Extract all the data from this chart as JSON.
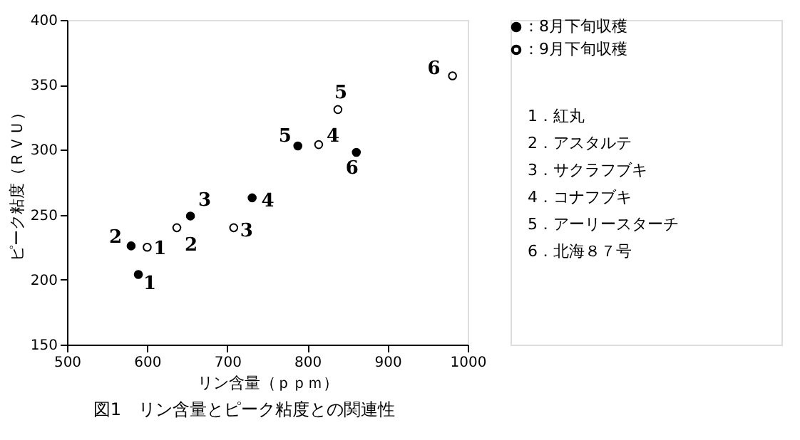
{
  "chart_data": {
    "type": "scatter",
    "title": "図1　リン含量とピーク粘度との関連性",
    "xlabel": "リン含量（ｐｐｍ）",
    "ylabel": "ピーク粘度（ＲＶＵ）",
    "xlim": [
      500,
      1000
    ],
    "xticks": [
      500,
      600,
      700,
      800,
      900,
      1000
    ],
    "ylim": [
      150,
      400
    ],
    "yticks": [
      150,
      200,
      250,
      300,
      350,
      400
    ],
    "grid": false,
    "legend": "right",
    "marker": "circle",
    "series": [
      {
        "name": "：8月下旬収穫",
        "color": "#000000",
        "x": [
          589,
          580,
          654,
          731,
          788,
          861
        ],
        "values": [
          204,
          226,
          249,
          263,
          303,
          298
        ]
      },
      {
        "name": "：9月下旬収穫",
        "color": "#ffffff",
        "x": [
          600,
          637,
          708,
          814,
          838,
          981
        ],
        "values": [
          225,
          240,
          240,
          304,
          331,
          357
        ]
      }
    ],
    "annotations": [
      {
        "text": "1",
        "x": 589,
        "y": 204
      },
      {
        "text": "2",
        "x": 580,
        "y": 226
      },
      {
        "text": "3",
        "x": 654,
        "y": 249
      },
      {
        "text": "4",
        "x": 731,
        "y": 263
      },
      {
        "text": "5",
        "x": 788,
        "y": 303
      },
      {
        "text": "6",
        "x": 861,
        "y": 298
      },
      {
        "text": "1",
        "x": 600,
        "y": 225
      },
      {
        "text": "2",
        "x": 637,
        "y": 240
      },
      {
        "text": "3",
        "x": 708,
        "y": 240
      },
      {
        "text": "4",
        "x": 814,
        "y": 304
      },
      {
        "text": "5",
        "x": 838,
        "y": 331
      },
      {
        "text": "6",
        "x": 981,
        "y": 357
      },
      "1．紅丸",
      "2．アスタルテ",
      "3．サクラフブキ",
      "4．コナフブキ",
      "5．アーリースターチ",
      "6．北海８７号"
    ]
  }
}
